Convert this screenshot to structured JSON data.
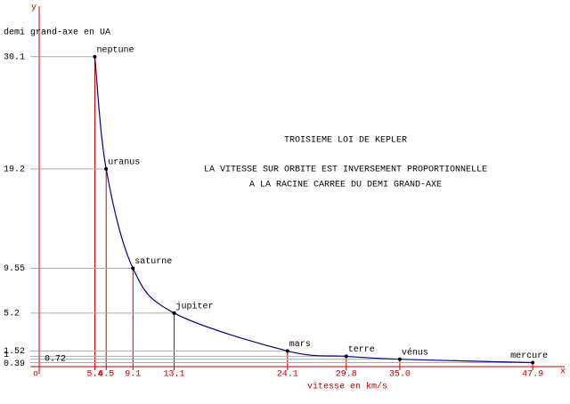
{
  "chart_data": {
    "type": "line",
    "title": "TROISIEME LOI DE KEPLER",
    "annotations": [
      "LA VITESSE SUR ORBITE EST INVERSEMENT PROPORTIONNELLE",
      "A LA RACINE CARREE DU DEMI GRAND-AXE"
    ],
    "x_label": "vitesse en km/s",
    "y_label": "demi grand-axe en UA",
    "x_axis_name": "x",
    "y_axis_name": "y",
    "origin_label": "o",
    "axis_color": "#c00000",
    "curve_color": "#00008c",
    "guide_color": "#aaaaaa",
    "xlim": [
      0,
      51
    ],
    "ylim": [
      0,
      35
    ],
    "xticks": [
      5.4,
      6.5,
      9.1,
      13.1,
      24.1,
      29.8,
      {
        "value": 35,
        "label": "35.0"
      },
      47.9
    ],
    "yticks": [
      0.39,
      0.72,
      1,
      1.52,
      5.2,
      9.55,
      19.2,
      30.1
    ],
    "point_labels": [
      "neptune",
      "uranus",
      "saturne",
      "jupiter",
      "mars",
      "terre",
      "vénus",
      "mercure"
    ],
    "x": [
      5.4,
      6.5,
      9.1,
      13.1,
      24.1,
      29.8,
      35.0,
      47.9
    ],
    "values": [
      30.1,
      19.2,
      9.55,
      5.2,
      1.52,
      1,
      0.72,
      0.39
    ]
  }
}
